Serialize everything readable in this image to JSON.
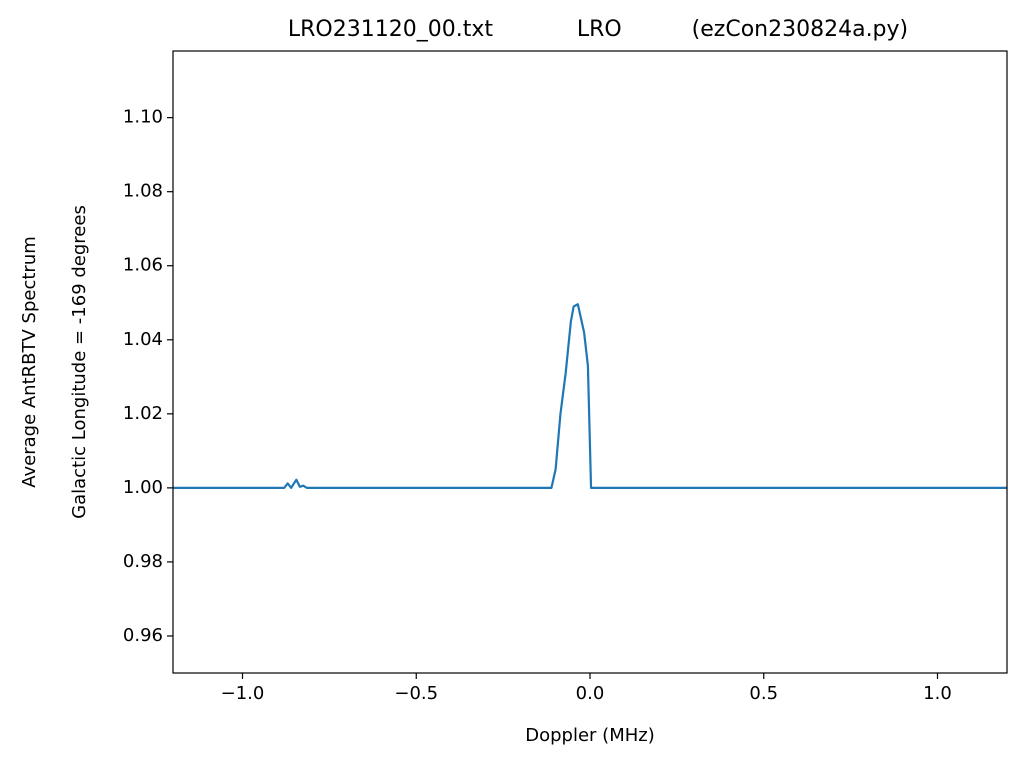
{
  "chart_data": {
    "type": "line",
    "title": "LRO231120_00.txt            LRO          (ezCon230824a.py)",
    "xlabel": "Doppler (MHz)",
    "ylabel": [
      "Average AntRBTV Spectrum",
      "Galactic Longitude = -169 degrees"
    ],
    "xlim": [
      -1.2,
      1.2
    ],
    "ylim": [
      0.95,
      1.118
    ],
    "xticks": [
      {
        "value": -1,
        "label": "−1.0"
      },
      {
        "value": -0.5,
        "label": "−0.5"
      },
      {
        "value": 0,
        "label": "0.0"
      },
      {
        "value": 0.5,
        "label": "0.5"
      },
      {
        "value": 1,
        "label": "1.0"
      }
    ],
    "yticks": [
      0.96,
      0.98,
      {
        "value": 1,
        "label": "1.00"
      },
      1.02,
      1.04,
      1.06,
      1.08,
      {
        "value": 1.1,
        "label": "1.10"
      }
    ],
    "series": [
      {
        "color": "#1f77b4",
        "x": [
          -1.2,
          -0.88,
          -0.87,
          -0.86,
          -0.85,
          -0.845,
          -0.835,
          -0.825,
          -0.815,
          -0.8,
          -0.111,
          -0.099,
          -0.085,
          -0.07,
          -0.055,
          -0.047,
          -0.035,
          -0.017,
          -0.006,
          0.003,
          1.2
        ],
        "values": [
          1.0,
          1.0,
          1.0012,
          1.0,
          1.0015,
          1.0022,
          1.0003,
          1.0006,
          1.0,
          1.0,
          1.0,
          1.005,
          1.02,
          1.031,
          1.045,
          1.049,
          1.0496,
          1.042,
          1.033,
          1.0,
          1.0
        ]
      }
    ]
  }
}
